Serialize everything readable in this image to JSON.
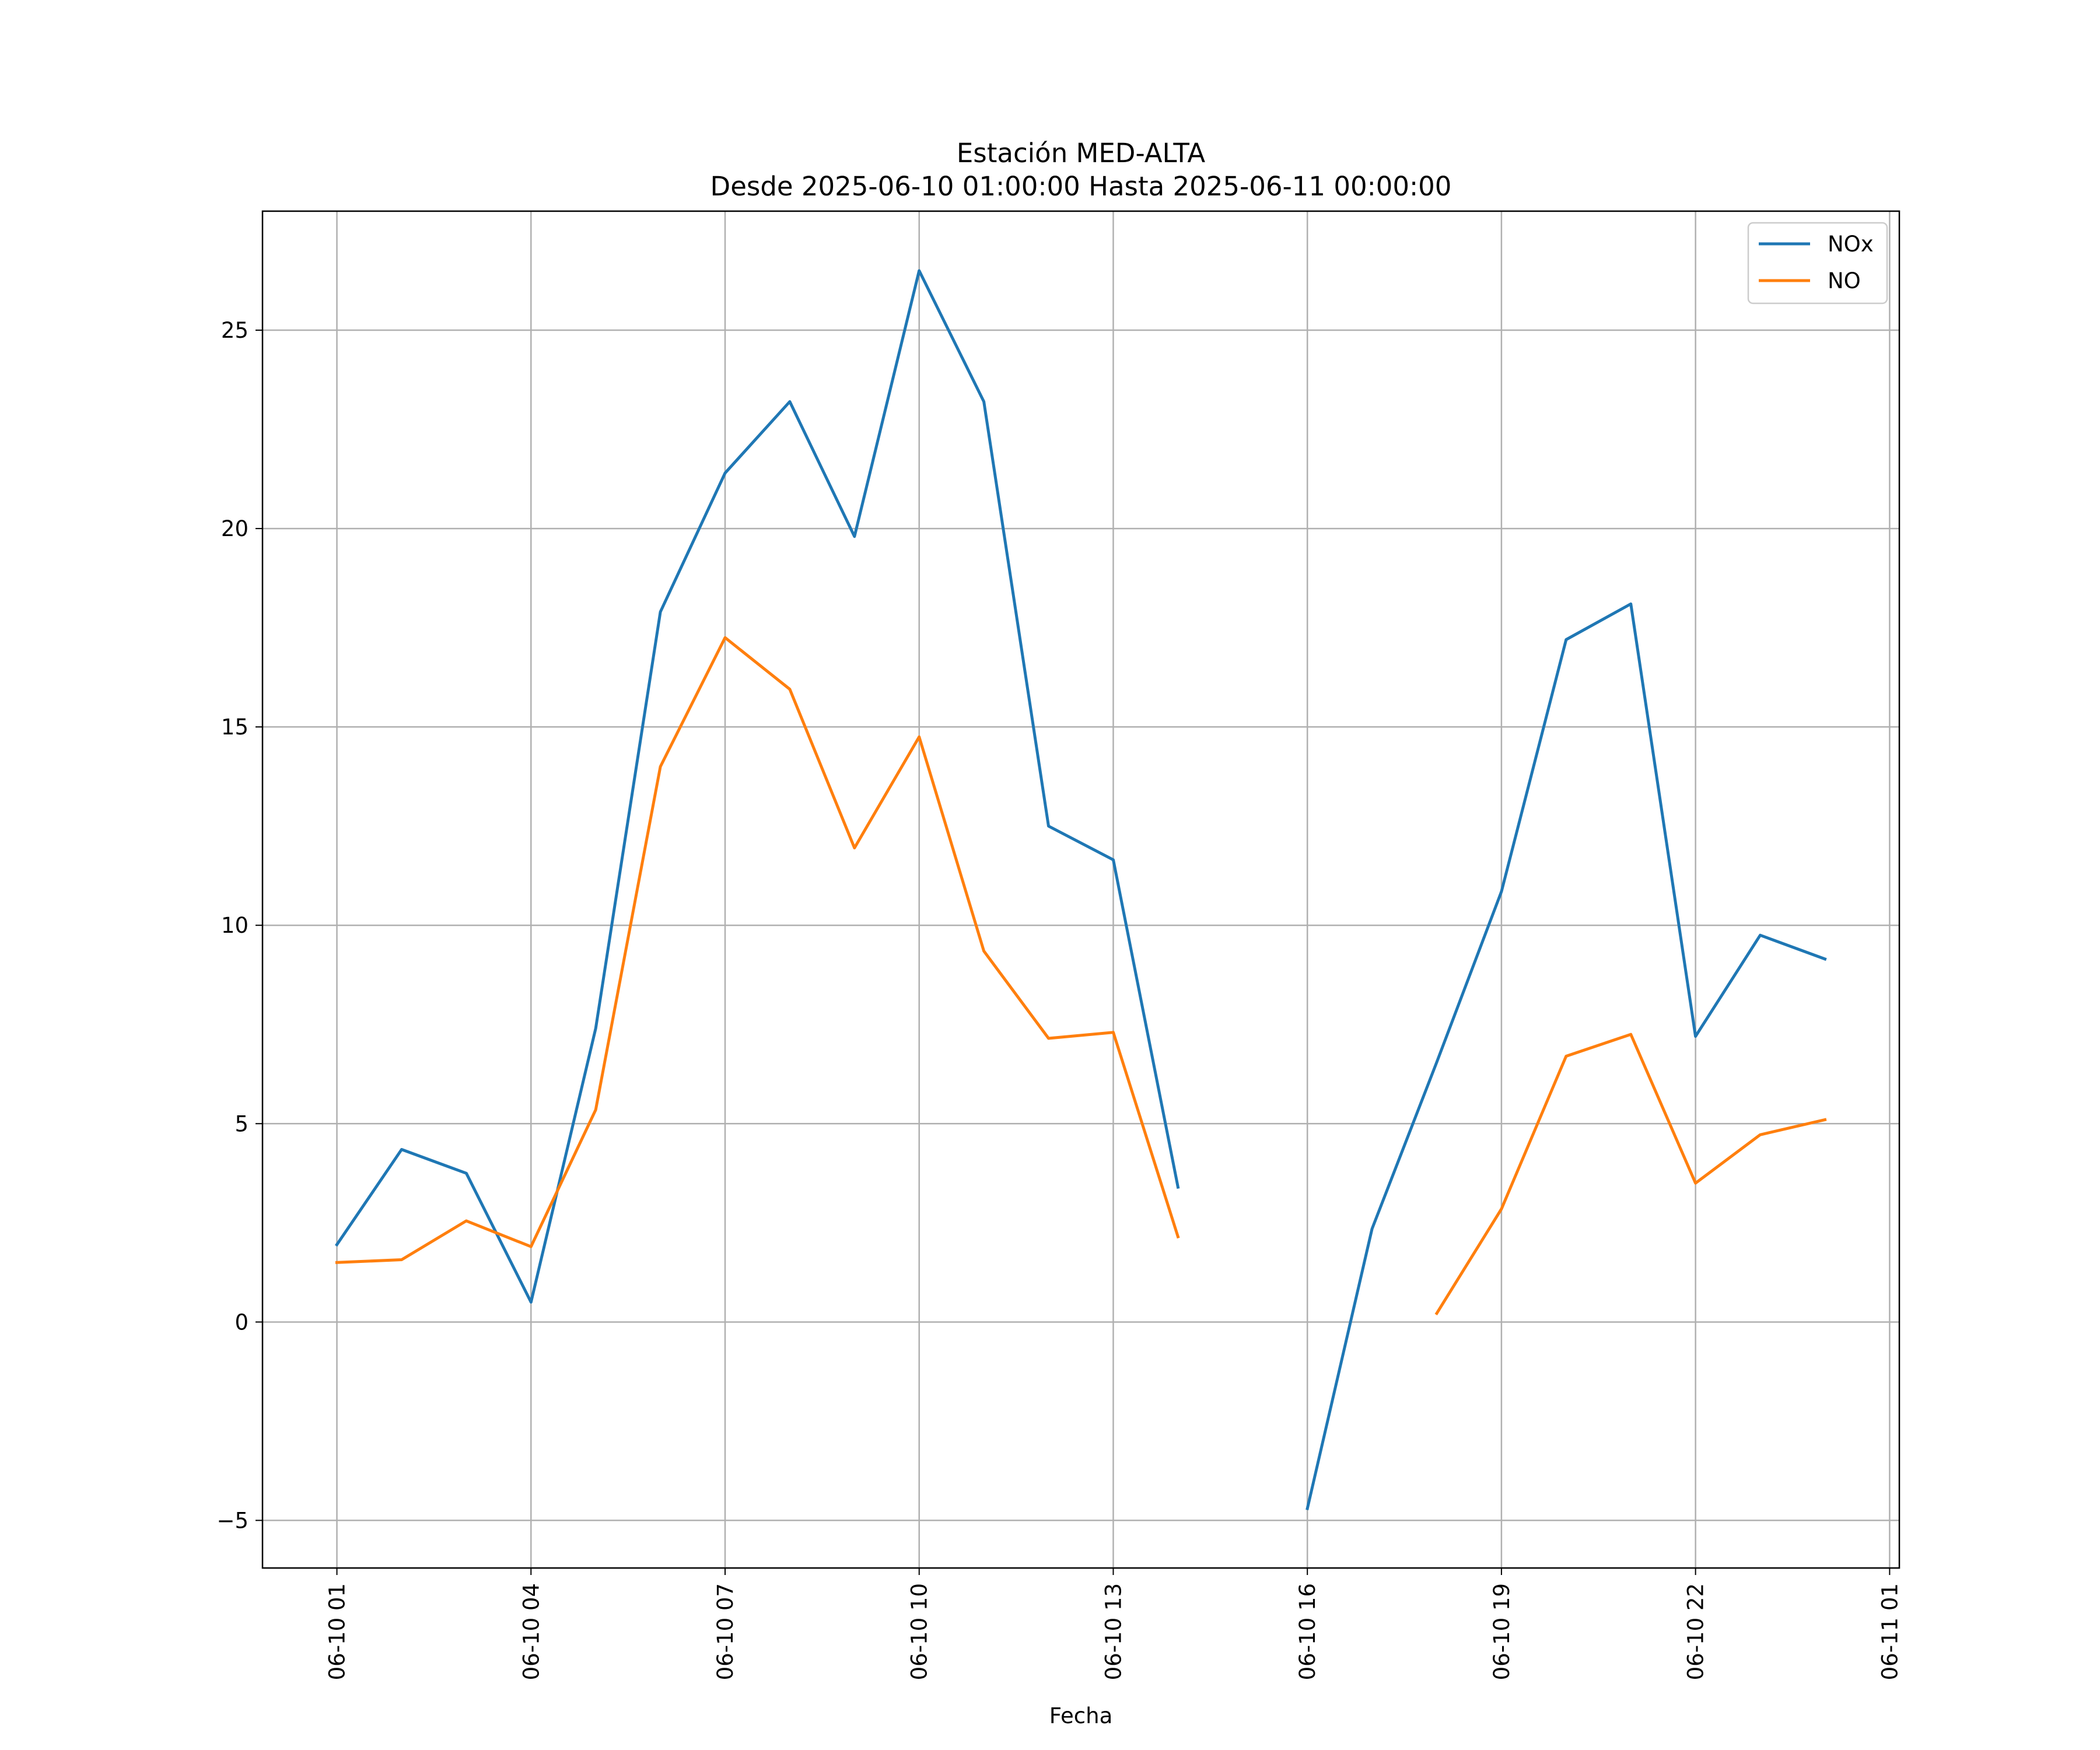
{
  "chart_data": {
    "type": "line",
    "title": "Estación MED-ALTA",
    "subtitle": "Desde 2025-06-10 01:00:00 Hasta 2025-06-11 00:00:00",
    "xlabel": "Fecha",
    "ylabel": "",
    "x": [
      "2025-06-10 01:00",
      "2025-06-10 02:00",
      "2025-06-10 03:00",
      "2025-06-10 04:00",
      "2025-06-10 05:00",
      "2025-06-10 06:00",
      "2025-06-10 07:00",
      "2025-06-10 08:00",
      "2025-06-10 09:00",
      "2025-06-10 10:00",
      "2025-06-10 11:00",
      "2025-06-10 12:00",
      "2025-06-10 13:00",
      "2025-06-10 14:00",
      "2025-06-10 15:00",
      "2025-06-10 16:00",
      "2025-06-10 17:00",
      "2025-06-10 18:00",
      "2025-06-10 19:00",
      "2025-06-10 20:00",
      "2025-06-10 21:00",
      "2025-06-10 22:00",
      "2025-06-10 23:00",
      "2025-06-11 00:00"
    ],
    "series": [
      {
        "name": "NOx",
        "color": "#1f77b4",
        "values": [
          1.95,
          4.35,
          3.75,
          0.5,
          7.4,
          17.9,
          21.4,
          23.2,
          19.8,
          26.5,
          23.2,
          12.5,
          11.65,
          3.4,
          null,
          -4.7,
          2.35,
          6.55,
          10.85,
          17.2,
          18.1,
          7.2,
          9.75,
          9.15
        ]
      },
      {
        "name": "NO",
        "color": "#ff7f0e",
        "values": [
          1.5,
          1.57,
          2.55,
          1.9,
          5.35,
          14.0,
          17.25,
          15.95,
          11.95,
          14.75,
          9.35,
          7.15,
          7.3,
          2.15,
          null,
          null,
          null,
          0.22,
          2.85,
          6.7,
          7.25,
          3.5,
          4.72,
          5.1
        ]
      }
    ],
    "ylim": [
      -6.2,
      28.0
    ],
    "yticks": [
      -5,
      0,
      5,
      10,
      15,
      20,
      25
    ],
    "yticklabels": [
      "−5",
      "0",
      "5",
      "10",
      "15",
      "20",
      "25"
    ],
    "xlim": [
      "2025-06-09 23:51",
      "2025-06-11 01:09"
    ],
    "xticks": [
      "2025-06-10 01:00",
      "2025-06-10 04:00",
      "2025-06-10 07:00",
      "2025-06-10 10:00",
      "2025-06-10 13:00",
      "2025-06-10 16:00",
      "2025-06-10 19:00",
      "2025-06-10 22:00",
      "2025-06-11 01:00"
    ],
    "xticklabels": [
      "06-10 01",
      "06-10 04",
      "06-10 07",
      "06-10 10",
      "06-10 13",
      "06-10 16",
      "06-10 19",
      "06-10 22",
      "06-11 01"
    ],
    "grid": true,
    "legend": "top-right"
  }
}
